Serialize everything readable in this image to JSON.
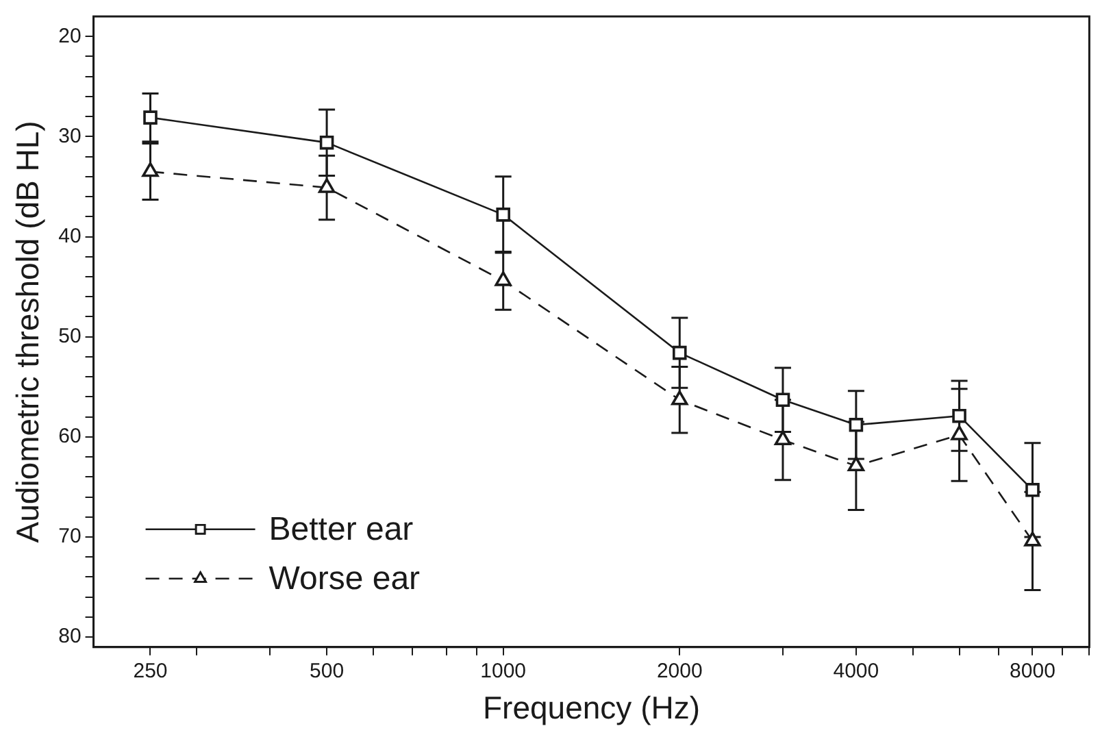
{
  "chart_data": {
    "type": "line",
    "xlabel": "Frequency (Hz)",
    "ylabel": "Audiometric threshold (dB HL)",
    "x": [
      250,
      500,
      1000,
      2000,
      3000,
      4000,
      6000,
      8000
    ],
    "series": [
      {
        "name": "Better ear",
        "color": "#1a1a1a",
        "marker": "square",
        "line_style": "solid",
        "values": [
          28.1,
          30.6,
          37.8,
          51.6,
          56.3,
          58.8,
          57.9,
          65.3
        ],
        "errors": [
          2.4,
          3.3,
          3.8,
          3.5,
          3.2,
          3.4,
          3.5,
          4.7
        ]
      },
      {
        "name": "Worse ear",
        "color": "#1a1a1a",
        "marker": "triangle",
        "line_style": "dashed",
        "values": [
          33.5,
          35.1,
          44.4,
          56.3,
          60.3,
          62.9,
          59.8,
          70.4
        ],
        "errors": [
          2.8,
          3.2,
          2.9,
          3.3,
          4.0,
          4.4,
          4.6,
          4.9
        ]
      }
    ],
    "log": "x",
    "xlim": [
      200,
      10000
    ],
    "xticks": [
      250,
      {
        "value": 300,
        "label": null
      },
      {
        "value": 400,
        "label": null
      },
      500,
      {
        "value": 600,
        "label": null
      },
      {
        "value": 700,
        "label": null
      },
      {
        "value": 800,
        "label": null
      },
      {
        "value": 900,
        "label": null
      },
      1000,
      2000,
      {
        "value": 3000,
        "label": null
      },
      4000,
      {
        "value": 5000,
        "label": null
      },
      {
        "value": 6000,
        "label": null
      },
      {
        "value": 7000,
        "label": null
      },
      8000,
      {
        "value": 9000,
        "label": null
      },
      {
        "value": 10000,
        "label": null
      }
    ],
    "ylim": [
      81,
      18
    ],
    "yticks": [
      20,
      {
        "value": 22,
        "label": null
      },
      {
        "value": 24,
        "label": null
      },
      {
        "value": 26,
        "label": null
      },
      {
        "value": 28,
        "label": null
      },
      30,
      {
        "value": 32,
        "label": null
      },
      {
        "value": 34,
        "label": null
      },
      {
        "value": 36,
        "label": null
      },
      {
        "value": 38,
        "label": null
      },
      40,
      {
        "value": 42,
        "label": null
      },
      {
        "value": 44,
        "label": null
      },
      {
        "value": 46,
        "label": null
      },
      {
        "value": 48,
        "label": null
      },
      50,
      {
        "value": 52,
        "label": null
      },
      {
        "value": 54,
        "label": null
      },
      {
        "value": 56,
        "label": null
      },
      {
        "value": 58,
        "label": null
      },
      60,
      {
        "value": 62,
        "label": null
      },
      {
        "value": 64,
        "label": null
      },
      {
        "value": 66,
        "label": null
      },
      {
        "value": 68,
        "label": null
      },
      70,
      {
        "value": 72,
        "label": null
      },
      {
        "value": 74,
        "label": null
      },
      {
        "value": 76,
        "label": null
      },
      {
        "value": 78,
        "label": null
      },
      80
    ],
    "grid": false,
    "legend": "bottom left"
  }
}
